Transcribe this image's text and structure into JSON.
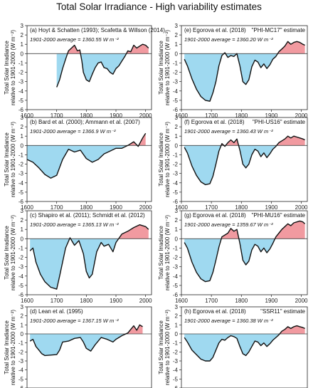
{
  "title": "Total Solar Irradiance - High variability estimates",
  "colors": {
    "above": "#f19aa0",
    "below": "#9fd9f0",
    "line": "#111111",
    "zero": "#444444"
  },
  "chart_data": [
    {
      "type": "area",
      "label": "(a) Hoyt & Schatten (1993); Scafetta & Willson (2014)",
      "estimate_label": "",
      "average_label": "1901-2000 average = 1360.55 W m⁻²",
      "ylabel": [
        "Total Solar Irradiance",
        "relative to 1901-2000 (W m⁻²)"
      ],
      "ylim": [
        -6,
        3
      ],
      "yticks": [
        -6,
        -5,
        -4,
        -3,
        -2,
        -1,
        0,
        1,
        2,
        3
      ],
      "xlim": [
        1600,
        2020
      ],
      "xticks": [
        1600,
        1700,
        1800,
        1900,
        2000
      ],
      "x": [
        1700,
        1710,
        1720,
        1730,
        1740,
        1750,
        1760,
        1770,
        1778,
        1785,
        1790,
        1800,
        1810,
        1820,
        1830,
        1840,
        1850,
        1860,
        1870,
        1880,
        1890,
        1900,
        1910,
        1920,
        1930,
        1940,
        1950,
        1960,
        1970,
        1980,
        1990,
        2000,
        2010
      ],
      "y": [
        -3.6,
        -2.8,
        -1.6,
        -0.6,
        0.3,
        0.6,
        0.9,
        0.3,
        0.4,
        -0.8,
        -2.0,
        -2.8,
        -3.0,
        -2.2,
        -1.5,
        -1.0,
        -0.9,
        -1.5,
        -1.6,
        -2.0,
        -2.2,
        -1.6,
        -1.3,
        -0.8,
        -0.3,
        0.3,
        0.2,
        0.9,
        0.6,
        0.8,
        1.0,
        0.9,
        0.6
      ]
    },
    {
      "type": "area",
      "label": "(b) Bard et al. (2000); Ammann et al. (2007)",
      "estimate_label": "",
      "average_label": "1901-2000 average = 1366.9 W m⁻²",
      "ylabel": [
        "Total Solar Irradiance",
        "relative to 1901-2000 (W m⁻²)"
      ],
      "ylim": [
        -6,
        3
      ],
      "yticks": [
        -6,
        -5,
        -4,
        -3,
        -2,
        -1,
        0,
        1,
        2,
        3
      ],
      "xlim": [
        1600,
        2020
      ],
      "xticks": [
        1600,
        1700,
        1800,
        1900,
        2000
      ],
      "x": [
        1600,
        1620,
        1640,
        1660,
        1680,
        1700,
        1720,
        1740,
        1760,
        1780,
        1800,
        1820,
        1840,
        1860,
        1880,
        1900,
        1920,
        1940,
        1960,
        1975,
        1990,
        2000
      ],
      "y": [
        -1.5,
        -1.8,
        -2.4,
        -3.1,
        -3.5,
        -3.2,
        -1.5,
        -0.4,
        -0.7,
        -0.5,
        -1.4,
        -1.8,
        -1.5,
        -0.9,
        -0.6,
        -0.3,
        -0.3,
        0.0,
        0.4,
        -0.1,
        0.8,
        1.3
      ]
    },
    {
      "type": "area",
      "label": "(c) Shapiro et al. (2011); Schmidt et al. (2012)",
      "estimate_label": "",
      "average_label": "1901-2000 average = 1365.13 W m⁻²",
      "ylabel": [
        "Total Solar Irradiance",
        "relative to 1901-2000 (W m⁻²)"
      ],
      "ylim": [
        -6,
        3
      ],
      "yticks": [
        -6,
        -5,
        -4,
        -3,
        -2,
        -1,
        0,
        1,
        2,
        3
      ],
      "xlim": [
        1600,
        2020
      ],
      "xticks": [
        1600,
        1700,
        1800,
        1900,
        2000
      ],
      "x": [
        1610,
        1620,
        1630,
        1645,
        1660,
        1680,
        1700,
        1710,
        1720,
        1730,
        1745,
        1760,
        1775,
        1790,
        1800,
        1810,
        1820,
        1835,
        1850,
        1860,
        1875,
        1890,
        1900,
        1920,
        1940,
        1960,
        1980,
        2000,
        2010
      ],
      "y": [
        -1.3,
        -1.0,
        -2.5,
        -3.8,
        -4.6,
        -5.2,
        -5.4,
        -4.0,
        -2.5,
        -1.0,
        0.1,
        -0.7,
        -0.2,
        -1.6,
        -3.5,
        -4.2,
        -3.8,
        -1.4,
        -0.4,
        -0.8,
        -0.6,
        -1.4,
        -0.4,
        0.5,
        0.8,
        1.2,
        1.5,
        1.3,
        1.0
      ]
    },
    {
      "type": "area",
      "label": "(d) Lean et al. (1995)",
      "estimate_label": "",
      "average_label": "1901-2000 average = 1367.15 W m⁻²",
      "ylabel": [
        "Total Solar Irradiance",
        "relative to 1901-2000 (W m⁻²)"
      ],
      "ylim": [
        -6,
        3
      ],
      "yticks": [
        -6,
        -5,
        -4,
        -3,
        -2,
        -1,
        0,
        1,
        2,
        3
      ],
      "xlim": [
        1600,
        2020
      ],
      "xticks": [
        1600,
        1700,
        1800,
        1900,
        2000
      ],
      "x": [
        1610,
        1620,
        1630,
        1640,
        1650,
        1660,
        1700,
        1710,
        1720,
        1740,
        1760,
        1780,
        1790,
        1800,
        1815,
        1830,
        1850,
        1870,
        1890,
        1900,
        1920,
        1940,
        1960,
        1970,
        1980,
        1990
      ],
      "y": [
        -0.8,
        -0.6,
        -1.4,
        -1.8,
        -2.2,
        -2.4,
        -2.3,
        -1.8,
        -0.9,
        -0.8,
        -0.5,
        -0.4,
        -0.9,
        -1.6,
        -1.9,
        -1.2,
        -0.4,
        -0.6,
        -0.9,
        -0.6,
        -0.2,
        0.1,
        0.9,
        0.4,
        1.0,
        0.8
      ]
    },
    {
      "type": "area",
      "label": "(e) Egorova et al. (2018)",
      "estimate_label": "\"PHI-MC17\" estimate",
      "average_label": "1901-2000 average = 1360.20 W m⁻²",
      "ylabel": [
        "Total Solar Irradiance",
        "relative to 1901-2000 (W m⁻²)"
      ],
      "ylim": [
        -6,
        3
      ],
      "yticks": [
        -6,
        -5,
        -4,
        -3,
        -2,
        -1,
        0,
        1,
        2,
        3
      ],
      "xlim": [
        1600,
        2020
      ],
      "xticks": [
        1600,
        1700,
        1800,
        1900,
        2000
      ],
      "x": [
        1610,
        1620,
        1635,
        1650,
        1665,
        1680,
        1695,
        1705,
        1715,
        1725,
        1735,
        1745,
        1755,
        1765,
        1775,
        1785,
        1795,
        1805,
        1815,
        1825,
        1835,
        1845,
        1855,
        1865,
        1875,
        1885,
        1895,
        1905,
        1915,
        1925,
        1935,
        1945,
        1955,
        1965,
        1975,
        1985,
        1995,
        2005,
        2012
      ],
      "y": [
        -0.6,
        -1.3,
        -2.7,
        -3.8,
        -4.6,
        -5.0,
        -5.1,
        -4.2,
        -3.0,
        -1.3,
        -0.2,
        0.1,
        -0.4,
        -0.2,
        -0.3,
        0.0,
        -1.3,
        -3.0,
        -3.3,
        -2.8,
        -1.4,
        -0.7,
        -0.9,
        -1.5,
        -1.1,
        -1.6,
        -1.2,
        -0.6,
        -0.3,
        0.2,
        0.5,
        0.8,
        1.3,
        1.0,
        1.2,
        1.3,
        1.2,
        1.0,
        0.9
      ]
    },
    {
      "type": "area",
      "label": "(f) Egorova et al. (2018)",
      "estimate_label": "\"PHI-US16\" estimate",
      "average_label": "1901-2000 average = 1360.43 W m⁻²",
      "ylabel": [
        "Total Solar Irradiance",
        "relative to 1901-2000 (W m⁻²)"
      ],
      "ylim": [
        -6,
        3
      ],
      "yticks": [
        -6,
        -5,
        -4,
        -3,
        -2,
        -1,
        0,
        1,
        2,
        3
      ],
      "xlim": [
        1600,
        2020
      ],
      "xticks": [
        1600,
        1700,
        1800,
        1900,
        2000
      ],
      "x": [
        1610,
        1620,
        1635,
        1650,
        1665,
        1680,
        1695,
        1705,
        1715,
        1725,
        1735,
        1745,
        1755,
        1765,
        1775,
        1785,
        1795,
        1805,
        1815,
        1825,
        1835,
        1845,
        1855,
        1865,
        1875,
        1885,
        1895,
        1905,
        1915,
        1925,
        1935,
        1945,
        1955,
        1965,
        1975,
        1985,
        1995,
        2005,
        2012
      ],
      "y": [
        -0.2,
        -0.8,
        -2.2,
        -3.2,
        -3.9,
        -4.2,
        -4.1,
        -3.3,
        -2.0,
        -0.6,
        0.2,
        -0.1,
        0.3,
        0.6,
        0.3,
        0.7,
        -0.5,
        -2.0,
        -2.4,
        -2.0,
        -1.0,
        -0.4,
        -0.6,
        -1.2,
        -0.8,
        -1.3,
        -0.9,
        -0.4,
        -0.1,
        0.3,
        0.5,
        0.7,
        1.0,
        0.8,
        1.0,
        0.9,
        0.8,
        0.7,
        0.6
      ]
    },
    {
      "type": "area",
      "label": "(g) Egorova et al. (2018)",
      "estimate_label": "\"PHI-MU16\" estimate",
      "average_label": "1901-2000 average = 1359.67 W m⁻²",
      "ylabel": [
        "Total Solar Irradiance",
        "relative to 1901-2000 (W m⁻²)"
      ],
      "ylim": [
        -6,
        3
      ],
      "yticks": [
        -6,
        -5,
        -4,
        -3,
        -2,
        -1,
        0,
        1,
        2,
        3
      ],
      "xlim": [
        1600,
        2020
      ],
      "xticks": [
        1600,
        1700,
        1800,
        1900,
        2000
      ],
      "x": [
        1610,
        1620,
        1635,
        1650,
        1665,
        1680,
        1695,
        1705,
        1715,
        1725,
        1735,
        1745,
        1755,
        1765,
        1775,
        1785,
        1795,
        1805,
        1815,
        1825,
        1835,
        1845,
        1855,
        1865,
        1875,
        1885,
        1895,
        1905,
        1915,
        1925,
        1935,
        1945,
        1955,
        1965,
        1975,
        1985,
        1995,
        2005,
        2012
      ],
      "y": [
        -0.4,
        -1.0,
        -2.5,
        -3.6,
        -4.3,
        -4.6,
        -4.5,
        -3.6,
        -2.3,
        -0.9,
        0.2,
        0.4,
        0.6,
        1.1,
        0.8,
        1.0,
        -0.5,
        -2.3,
        -2.8,
        -2.4,
        -1.2,
        -0.6,
        -0.8,
        -1.4,
        -1.0,
        -1.5,
        -1.1,
        -0.5,
        0.2,
        0.6,
        1.0,
        1.3,
        1.6,
        1.4,
        1.7,
        1.8,
        1.9,
        1.8,
        1.6
      ]
    },
    {
      "type": "area",
      "label": "(h) Egorova et al. (2018)",
      "estimate_label": "\"SSR11\" estimate",
      "average_label": "1901-2000 average = 1360.38 W m⁻²",
      "ylabel": [
        "Total Solar Irradiance",
        "relative to 1901-2000 (W m⁻²)"
      ],
      "ylim": [
        -6,
        3
      ],
      "yticks": [
        -6,
        -5,
        -4,
        -3,
        -2,
        -1,
        0,
        1,
        2,
        3
      ],
      "xlim": [
        1600,
        2020
      ],
      "xticks": [
        1600,
        1700,
        1800,
        1900,
        2000
      ],
      "x": [
        1610,
        1620,
        1635,
        1650,
        1665,
        1680,
        1695,
        1705,
        1715,
        1725,
        1735,
        1745,
        1755,
        1765,
        1775,
        1785,
        1795,
        1805,
        1815,
        1825,
        1835,
        1845,
        1855,
        1865,
        1875,
        1885,
        1895,
        1905,
        1915,
        1925,
        1935,
        1945,
        1955,
        1965,
        1975,
        1985,
        1995,
        2005,
        2012
      ],
      "y": [
        -0.4,
        -0.9,
        -1.8,
        -2.3,
        -2.8,
        -3.0,
        -3.0,
        -2.6,
        -1.8,
        -1.0,
        -0.6,
        -0.7,
        -0.4,
        -0.2,
        -0.3,
        -0.5,
        -1.4,
        -2.2,
        -2.4,
        -2.0,
        -1.4,
        -0.8,
        -0.9,
        -1.3,
        -1.0,
        -1.4,
        -1.1,
        -0.7,
        -0.4,
        -0.1,
        0.3,
        0.5,
        0.8,
        0.6,
        0.8,
        0.9,
        0.8,
        0.7,
        0.6
      ]
    }
  ]
}
